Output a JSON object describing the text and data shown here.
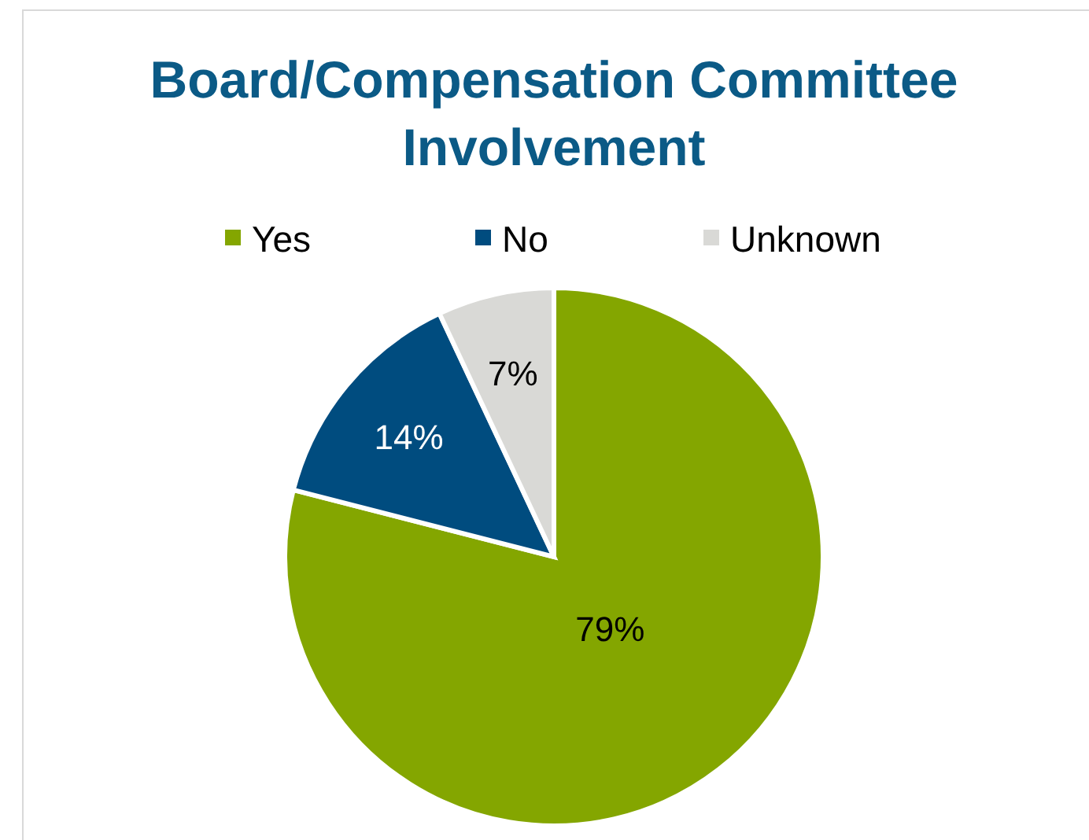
{
  "chart_data": {
    "type": "pie",
    "title": "Board/Compensation Committee Involvement",
    "categories": [
      "Yes",
      "No",
      "Unknown"
    ],
    "values": [
      79,
      14,
      7
    ],
    "colors": [
      "#84a600",
      "#004c7f",
      "#d9d9d6"
    ],
    "value_labels": [
      "79%",
      "14%",
      "7%"
    ],
    "legend": "top"
  }
}
